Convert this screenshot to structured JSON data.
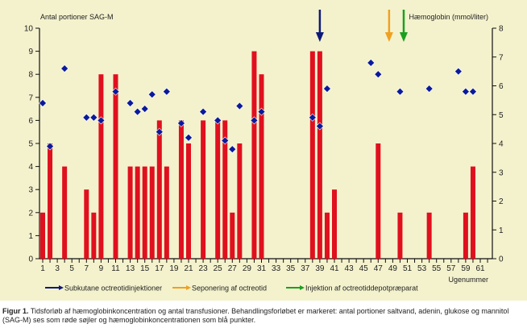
{
  "chart_data": {
    "type": "bar+scatter",
    "ylabel_left": "Antal portioner SAG-M",
    "ylabel_right": "Hæmoglobin (mmol/liter)",
    "xlabel": "Ugenummer",
    "ylim_left": [
      0,
      10
    ],
    "ylim_right": [
      0,
      8
    ],
    "xlim": [
      1,
      62
    ],
    "xticks": [
      1,
      3,
      5,
      7,
      9,
      11,
      13,
      15,
      17,
      19,
      21,
      23,
      25,
      27,
      29,
      31,
      33,
      35,
      37,
      39,
      41,
      43,
      45,
      47,
      49,
      51,
      53,
      55,
      57,
      59,
      61
    ],
    "yticks_left": [
      0,
      1,
      2,
      3,
      4,
      5,
      6,
      7,
      8,
      9,
      10
    ],
    "yticks_right": [
      0,
      1,
      2,
      3,
      4,
      5,
      6,
      7,
      8
    ],
    "bars": {
      "color": "#e0101e",
      "weeks": [
        1,
        2,
        4,
        7,
        8,
        9,
        11,
        13,
        14,
        15,
        16,
        17,
        18,
        20,
        21,
        23,
        25,
        26,
        27,
        28,
        30,
        31,
        38,
        39,
        40,
        41,
        47,
        50,
        54,
        59,
        60
      ],
      "values": [
        2,
        5,
        4,
        3,
        2,
        8,
        8,
        4,
        4,
        4,
        4,
        6,
        4,
        6,
        5,
        6,
        6,
        6,
        2,
        5,
        9,
        8,
        9,
        9,
        2,
        3,
        5,
        2,
        2,
        2,
        4
      ]
    },
    "hemoglobin": {
      "color": "#0a1a9a",
      "weeks": [
        1,
        2,
        4,
        7,
        8,
        9,
        11,
        13,
        14,
        15,
        16,
        17,
        18,
        20,
        21,
        23,
        25,
        26,
        27,
        28,
        30,
        31,
        38,
        39,
        40,
        46,
        47,
        50,
        54,
        58,
        59,
        60
      ],
      "values": [
        5.4,
        3.9,
        6.6,
        4.9,
        4.9,
        4.8,
        5.8,
        5.4,
        5.1,
        5.2,
        5.7,
        4.4,
        5.8,
        4.7,
        4.2,
        5.1,
        4.8,
        4.1,
        3.8,
        5.3,
        4.8,
        5.1,
        4.9,
        4.6,
        5.9,
        6.8,
        6.4,
        5.8,
        5.9,
        6.5,
        5.8,
        5.8
      ]
    },
    "arrows": [
      {
        "week": 39,
        "color": "#0d1a7a",
        "label": "Subkutane octreotidinjektioner"
      },
      {
        "week": 48.5,
        "color": "#f0a020",
        "label": "Seponering af octreotid"
      },
      {
        "week": 50.5,
        "color": "#1aa020",
        "label": "Injektion af octreotiddepotpræparat"
      }
    ],
    "legend": "bottom"
  },
  "caption": {
    "label": "Figur 1.",
    "text": "Tidsforløb af hæmoglobinkoncentration og antal transfusioner. Behandlingsforløbet er markeret: antal portioner saltvand, adenin, glukose og mannitol (SAG-M) ses som røde søjler og hæmoglobinkoncentrationen som blå punkter."
  }
}
